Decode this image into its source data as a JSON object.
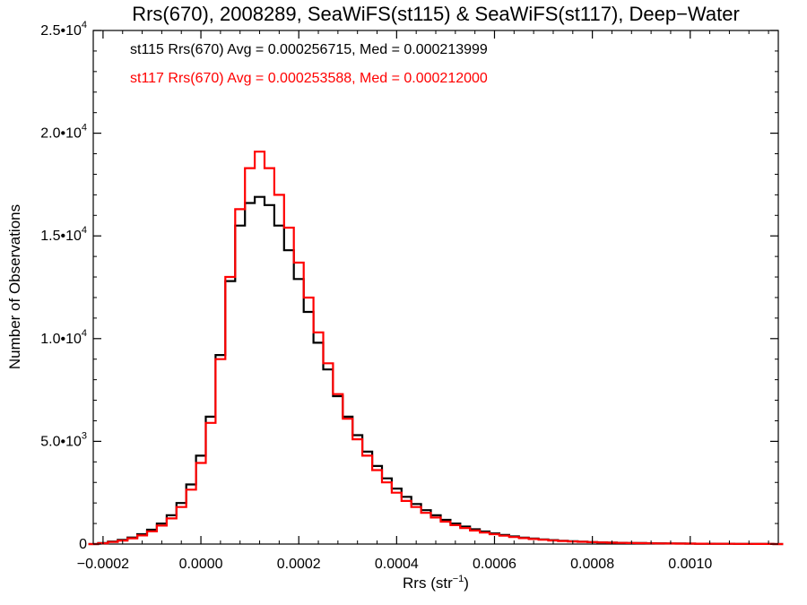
{
  "chart_data": {
    "type": "line",
    "title": "Rrs(670), 2008289, SeaWiFS(st115) & SeaWiFS(st117), Deep−Water",
    "xlabel": "Rrs (str",
    "xlabel_sup": "−1",
    "xlabel_end": ")",
    "ylabel": "Number of Observations",
    "xlim": [
      -0.00022,
      0.00118
    ],
    "ylim": [
      0,
      25000
    ],
    "x_ticks": [
      {
        "value": -0.0002,
        "label": "−0.0002"
      },
      {
        "value": 0.0,
        "label": "0.0000"
      },
      {
        "value": 0.0002,
        "label": "0.0002"
      },
      {
        "value": 0.0004,
        "label": "0.0004"
      },
      {
        "value": 0.0006,
        "label": "0.0006"
      },
      {
        "value": 0.0008,
        "label": "0.0008"
      },
      {
        "value": 0.001,
        "label": "0.0010"
      }
    ],
    "y_ticks": [
      {
        "value": 0,
        "mant": "0",
        "exp": ""
      },
      {
        "value": 5000,
        "mant": "5.0•10",
        "exp": "3"
      },
      {
        "value": 10000,
        "mant": "1.0•10",
        "exp": "4"
      },
      {
        "value": 15000,
        "mant": "1.5•10",
        "exp": "4"
      },
      {
        "value": 20000,
        "mant": "2.0•10",
        "exp": "4"
      },
      {
        "value": 25000,
        "mant": "2.5•10",
        "exp": "4"
      }
    ],
    "annotations": [
      {
        "text": "st115 Rrs(670) Avg = 0.000256715, Med = 0.000213999",
        "color": "#000000"
      },
      {
        "text": "st117 Rrs(670) Avg = 0.000253588, Med = 0.000212000",
        "color": "#ff0000"
      }
    ],
    "series": [
      {
        "name": "st115",
        "color": "#000000",
        "x": [
          -0.00022,
          -0.0002,
          -0.00018,
          -0.00016,
          -0.00014,
          -0.00012,
          -0.0001,
          -8e-05,
          -6e-05,
          -4e-05,
          -2e-05,
          0.0,
          2e-05,
          4e-05,
          6e-05,
          8e-05,
          0.0001,
          0.00012,
          0.00014,
          0.00016,
          0.00018,
          0.0002,
          0.00022,
          0.00024,
          0.00026,
          0.00028,
          0.0003,
          0.00032,
          0.00034,
          0.00036,
          0.00038,
          0.0004,
          0.00042,
          0.00044,
          0.00046,
          0.00048,
          0.0005,
          0.00052,
          0.00054,
          0.00056,
          0.00058,
          0.0006,
          0.00062,
          0.00064,
          0.00066,
          0.00068,
          0.0007,
          0.00072,
          0.00074,
          0.00076,
          0.00078,
          0.0008,
          0.00082,
          0.00084,
          0.00086,
          0.00088,
          0.0009,
          0.00092,
          0.00094,
          0.00096,
          0.00098,
          0.001,
          0.00102,
          0.00104,
          0.00106,
          0.00108,
          0.0011,
          0.00112,
          0.00114,
          0.00116,
          0.00118
        ],
        "y": [
          0,
          50,
          120,
          200,
          320,
          480,
          700,
          1000,
          1400,
          2000,
          2900,
          4300,
          6200,
          9200,
          12800,
          15500,
          16600,
          16900,
          16500,
          15500,
          14300,
          12900,
          11300,
          9800,
          8500,
          7200,
          6200,
          5300,
          4500,
          3800,
          3200,
          2700,
          2300,
          1950,
          1650,
          1400,
          1180,
          1000,
          850,
          720,
          610,
          520,
          440,
          370,
          310,
          265,
          225,
          190,
          160,
          135,
          115,
          98,
          84,
          72,
          62,
          53,
          46,
          40,
          34,
          29,
          25,
          22,
          19,
          16,
          14,
          12,
          10,
          8,
          6,
          4,
          2
        ]
      },
      {
        "name": "st117",
        "color": "#ff0000",
        "x": [
          -0.00022,
          -0.0002,
          -0.00018,
          -0.00016,
          -0.00014,
          -0.00012,
          -0.0001,
          -8e-05,
          -6e-05,
          -4e-05,
          -2e-05,
          0.0,
          2e-05,
          4e-05,
          6e-05,
          8e-05,
          0.0001,
          0.00012,
          0.00014,
          0.00016,
          0.00018,
          0.0002,
          0.00022,
          0.00024,
          0.00026,
          0.00028,
          0.0003,
          0.00032,
          0.00034,
          0.00036,
          0.00038,
          0.0004,
          0.00042,
          0.00044,
          0.00046,
          0.00048,
          0.0005,
          0.00052,
          0.00054,
          0.00056,
          0.00058,
          0.0006,
          0.00062,
          0.00064,
          0.00066,
          0.00068,
          0.0007,
          0.00072,
          0.00074,
          0.00076,
          0.00078,
          0.0008,
          0.00082,
          0.00084,
          0.00086,
          0.00088,
          0.0009,
          0.00092,
          0.00094,
          0.00096,
          0.00098,
          0.001,
          0.00102,
          0.00104,
          0.00106,
          0.00108,
          0.0011,
          0.00112,
          0.00114,
          0.00116,
          0.00118
        ],
        "y": [
          0,
          40,
          100,
          170,
          280,
          420,
          620,
          900,
          1250,
          1800,
          2650,
          3950,
          5900,
          9000,
          13000,
          16300,
          18300,
          19100,
          18300,
          17000,
          15400,
          13700,
          12000,
          10300,
          8800,
          7300,
          6100,
          5100,
          4300,
          3600,
          3000,
          2500,
          2100,
          1800,
          1520,
          1290,
          1090,
          920,
          780,
          660,
          560,
          480,
          405,
          340,
          290,
          245,
          208,
          176,
          149,
          126,
          107,
          91,
          78,
          67,
          57,
          49,
          42,
          36,
          31,
          27,
          23,
          20,
          17,
          15,
          13,
          11,
          9,
          7,
          5,
          3,
          2
        ]
      }
    ]
  }
}
